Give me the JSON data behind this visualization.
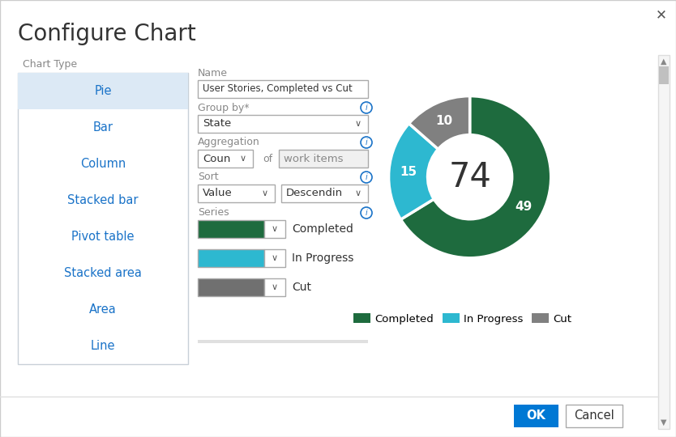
{
  "title": "Configure Chart",
  "bg_color": "#ffffff",
  "border_color": "#cccccc",
  "chart_type_label": "Chart Type",
  "chart_types": [
    "Pie",
    "Bar",
    "Column",
    "Stacked bar",
    "Pivot table",
    "Stacked area",
    "Area",
    "Line"
  ],
  "selected_chart_type": "Pie",
  "selected_bg": "#dce9f5",
  "list_border": "#c8d0d8",
  "blue_text": "#1a73c8",
  "gray_text": "#888888",
  "dark_text": "#333333",
  "name_label": "Name",
  "name_value": "User Stories, Completed vs Cut",
  "groupby_label": "Group by*",
  "groupby_value": "State",
  "aggregation_label": "Aggregation",
  "aggregation_value1": "Coun",
  "aggregation_value2": "work items",
  "sort_label": "Sort",
  "sort_value1": "Value",
  "sort_value2": "Descendin",
  "series_label": "Series",
  "series": [
    {
      "name": "Completed",
      "color": "#1e6b3e"
    },
    {
      "name": "In Progress",
      "color": "#2db8d0"
    },
    {
      "name": "Cut",
      "color": "#707070"
    }
  ],
  "donut_values": [
    49,
    15,
    10
  ],
  "donut_labels": [
    "49",
    "15",
    "10"
  ],
  "donut_colors": [
    "#1e6b3e",
    "#2db8d0",
    "#808080"
  ],
  "donut_total": "74",
  "legend_labels": [
    "Completed",
    "In Progress",
    "Cut"
  ],
  "legend_colors": [
    "#1e6b3e",
    "#2db8d0",
    "#808080"
  ],
  "ok_color": "#0078d4",
  "ok_label": "OK",
  "cancel_label": "Cancel",
  "scrollbar_color": "#c0c0c0",
  "input_border": "#aaaaaa",
  "dropdown_border": "#aaaaaa",
  "info_icon_color": "#1a73c8",
  "chevron": "∨"
}
